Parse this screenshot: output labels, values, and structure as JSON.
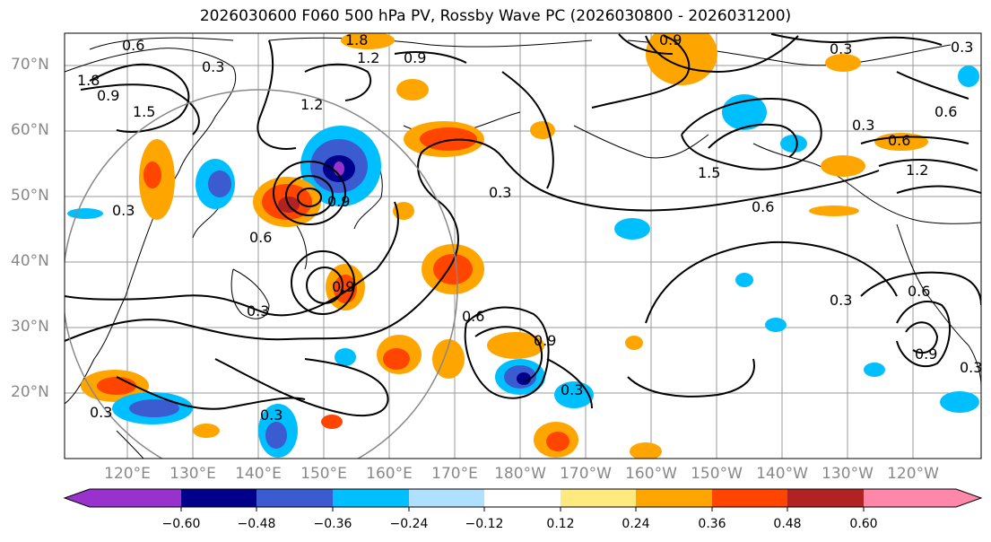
{
  "title": "2026030600 F060 500 hPa PV, Rossby Wave PC (2026030800 - 2026031200)",
  "latitude_labels": [
    "70°N",
    "60°N",
    "50°N",
    "40°N",
    "30°N",
    "20°N"
  ],
  "longitude_labels": [
    "120°E",
    "130°E",
    "140°E",
    "150°E",
    "160°E",
    "170°E",
    "180°W",
    "170°W",
    "160°W",
    "150°W",
    "140°W",
    "130°W",
    "120°W"
  ],
  "colorbar": {
    "ticks": [
      "−0.60",
      "−0.48",
      "−0.36",
      "−0.24",
      "−0.12",
      "0.12",
      "0.24",
      "0.36",
      "0.48",
      "0.60"
    ],
    "colors": [
      "#9932cc",
      "#00008b",
      "#3b5bd1",
      "#00bfff",
      "#b0e0ff",
      "#ffffff",
      "#ffea80",
      "#ffa500",
      "#ff4500",
      "#b22222",
      "#ff88aa"
    ]
  },
  "contour_labels": [
    "0.6",
    "1.8",
    "0.9",
    "1.5",
    "0.3",
    "1.8",
    "1.2",
    "0.9",
    "1.2",
    "0.3",
    "0.9",
    "0.3",
    "0.6",
    "0.3",
    "1.5",
    "0.6",
    "0.3",
    "0.6",
    "1.2",
    "0.6",
    "0.3",
    "0.6",
    "0.3",
    "0.9",
    "0.6",
    "0.3",
    "0.9",
    "0.9",
    "0.3",
    "0.3",
    "0.9",
    "0.3",
    "0.3"
  ]
}
